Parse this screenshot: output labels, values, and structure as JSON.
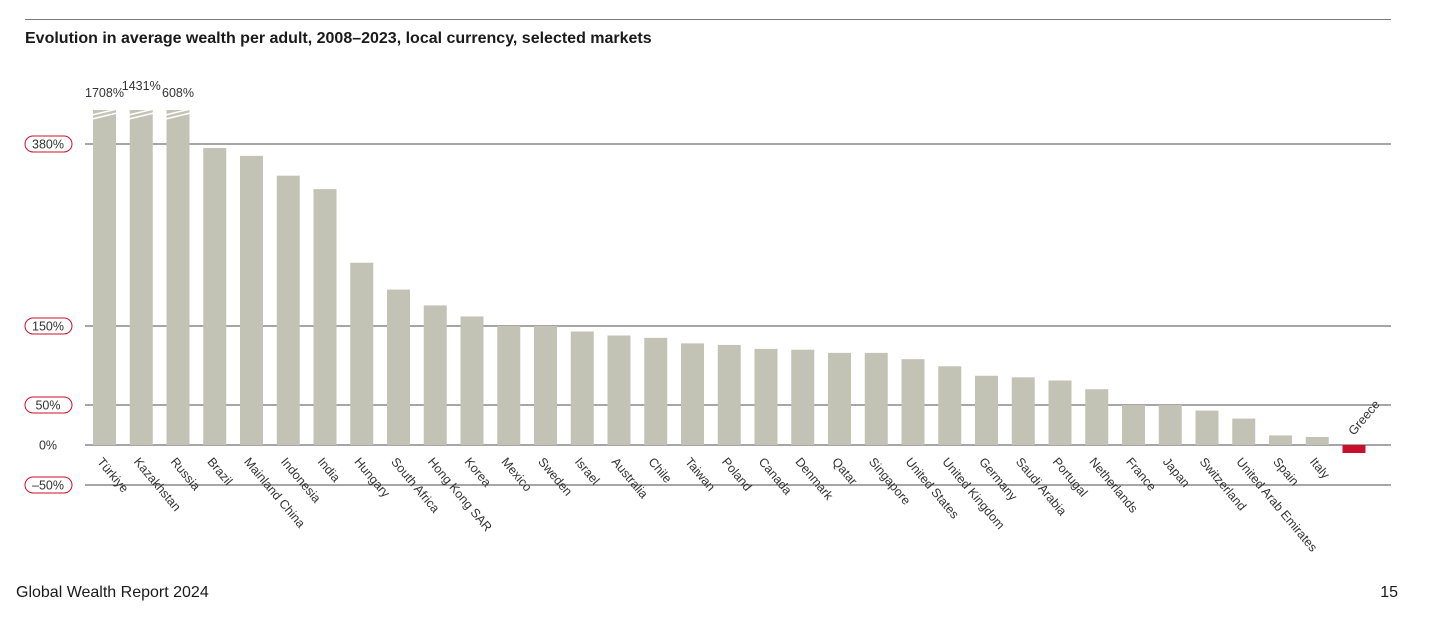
{
  "footer": {
    "report_title": "Global Wealth Report 2024",
    "page_number": "15"
  },
  "colors": {
    "bar": "#c3c3b5",
    "bar_negative": "#c8102e",
    "grid": "#4d4d4d",
    "pill_border": "#c8102e",
    "text": "#333333"
  },
  "chart_data": {
    "type": "bar",
    "title": "Evolution in average wealth per adult, 2008–2023, local currency, selected markets",
    "xlabel": "",
    "ylabel": "",
    "ylim": [
      -50,
      420
    ],
    "axis_breaks": true,
    "gridlines": [
      {
        "value": 380,
        "label": "380%",
        "pill": true
      },
      {
        "value": 150,
        "label": "150%",
        "pill": true
      },
      {
        "value": 50,
        "label": "50%",
        "pill": true
      },
      {
        "value": 0,
        "label": "0%",
        "pill": false
      },
      {
        "value": -50,
        "label": "–50%",
        "pill": true
      }
    ],
    "categories": [
      "Türkiye",
      "Kazakhstan",
      "Russia",
      "Brazil",
      "Mainland China",
      "Indonesia",
      "India",
      "Hungary",
      "South Africa",
      "Hong Kong SAR",
      "Korea",
      "Mexico",
      "Sweden",
      "Israel",
      "Australia",
      "Chile",
      "Taiwan",
      "Poland",
      "Canada",
      "Denmark",
      "Qatar",
      "Singapore",
      "United States",
      "United Kingdom",
      "Germany",
      "Saudi Arabia",
      "Portugal",
      "Netherlands",
      "France",
      "Japan",
      "Switzerland",
      "United Arab Emirates",
      "Spain",
      "Italy",
      "Greece"
    ],
    "values": [
      1708,
      1431,
      608,
      375,
      365,
      340,
      323,
      230,
      196,
      176,
      162,
      150,
      150,
      143,
      138,
      135,
      128,
      126,
      121,
      120,
      116,
      116,
      108,
      99,
      87,
      85,
      81,
      70,
      50,
      50,
      43,
      33,
      12,
      10,
      -10
    ],
    "value_labels": [
      {
        "category": "Türkiye",
        "label": "1708%"
      },
      {
        "category": "Kazakhstan",
        "label": "1431%"
      },
      {
        "category": "Russia",
        "label": "608%"
      }
    ]
  }
}
